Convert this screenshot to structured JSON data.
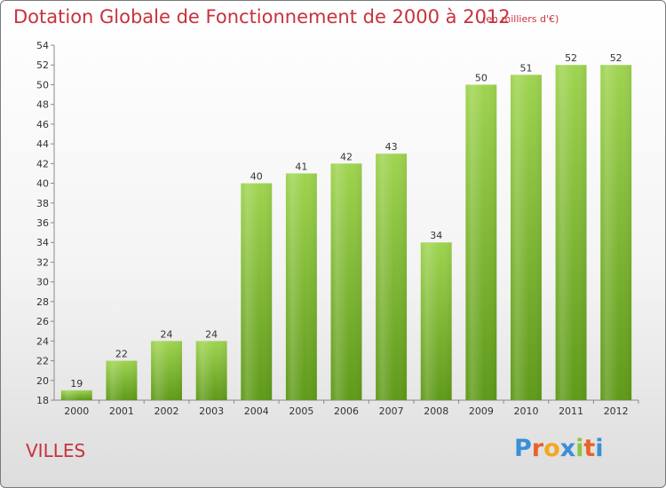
{
  "header": {
    "title": "Dotation Globale de Fonctionnement de 2000 à 2012",
    "unit": "(en milliers d'€)"
  },
  "footer": {
    "commune": "VILLES",
    "logo_letters": [
      "P",
      "r",
      "o",
      "x",
      "i",
      "t",
      "i"
    ]
  },
  "colors": {
    "bar_top": "#9fd450",
    "bar_bottom": "#5f9a1a",
    "title": "#c8323c",
    "logo": [
      "#3a8fd6",
      "#e8632b",
      "#f2a81f",
      "#3a8fd6",
      "#8cc63f",
      "#e8632b",
      "#3a8fd6"
    ]
  },
  "chart_data": {
    "type": "bar",
    "title": "Dotation Globale de Fonctionnement de 2000 à 2012",
    "subtitle": "(en milliers d'€)",
    "categories": [
      "2000",
      "2001",
      "2002",
      "2003",
      "2004",
      "2005",
      "2006",
      "2007",
      "2008",
      "2009",
      "2010",
      "2011",
      "2012"
    ],
    "values": [
      19,
      22,
      24,
      24,
      40,
      41,
      42,
      43,
      34,
      50,
      51,
      52,
      52
    ],
    "ylim": [
      18,
      54
    ],
    "yticks": [
      18,
      20,
      22,
      24,
      26,
      28,
      30,
      32,
      34,
      36,
      38,
      40,
      42,
      44,
      46,
      48,
      50,
      52,
      54
    ],
    "xlabel": "",
    "ylabel": "",
    "grid": false,
    "data_labels": true
  }
}
